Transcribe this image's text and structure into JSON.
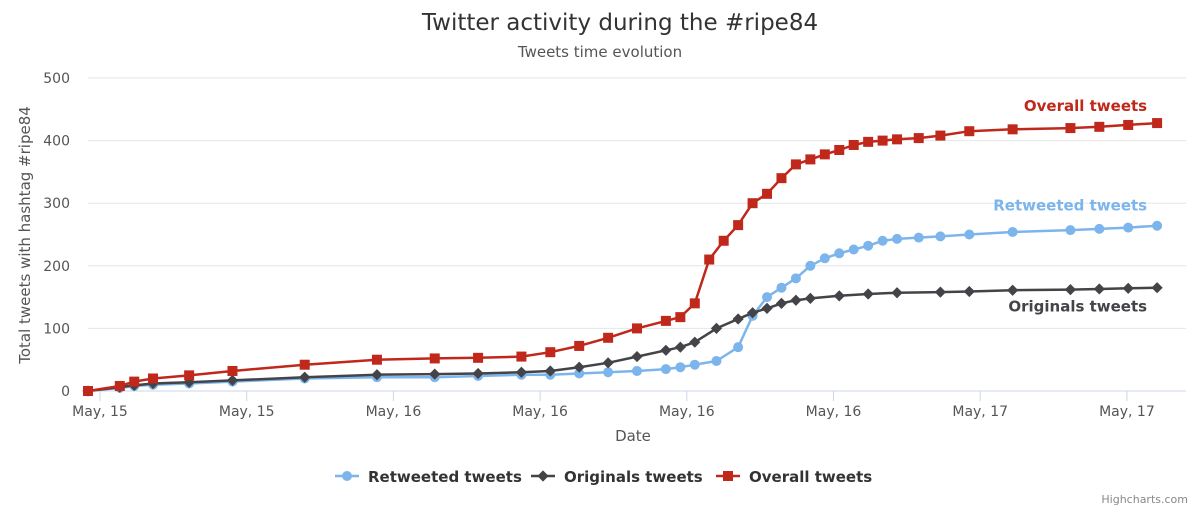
{
  "chart_data": {
    "type": "line",
    "title": "Twitter activity during the #ripe84",
    "subtitle": "Tweets time evolution",
    "xlabel": "Date",
    "ylabel": "Total tweets with hashtag #ripe84",
    "x_tick_labels": [
      "May, 15",
      "May, 15",
      "May, 16",
      "May, 16",
      "May, 16",
      "May, 16",
      "May, 17",
      "May, 17"
    ],
    "ylim": [
      0,
      500
    ],
    "y_ticks": [
      0,
      100,
      200,
      300,
      400,
      500
    ],
    "grid": true,
    "legend_position": "bottom-center",
    "credits": "Highcharts.com",
    "series": [
      {
        "name": "Retweeted tweets",
        "color": "#7cb5ec",
        "marker": "circle",
        "end_label": "Retweeted tweets",
        "x": [
          0.0,
          0.22,
          0.32,
          0.45,
          0.7,
          1.0,
          1.5,
          2.0,
          2.4,
          2.7,
          3.0,
          3.2,
          3.4,
          3.6,
          3.8,
          4.0,
          4.1,
          4.2,
          4.35,
          4.5,
          4.6,
          4.7,
          4.8,
          4.9,
          5.0,
          5.1,
          5.2,
          5.3,
          5.4,
          5.5,
          5.6,
          5.75,
          5.9,
          6.1,
          6.4,
          6.8,
          7.0,
          7.2,
          7.4
        ],
        "y": [
          0,
          5,
          8,
          10,
          12,
          15,
          20,
          22,
          22,
          24,
          26,
          26,
          28,
          30,
          32,
          35,
          38,
          42,
          48,
          70,
          120,
          150,
          165,
          180,
          200,
          212,
          220,
          226,
          232,
          240,
          243,
          245,
          247,
          250,
          254,
          257,
          259,
          261,
          264
        ]
      },
      {
        "name": "Originals tweets",
        "color": "#434348",
        "marker": "diamond",
        "end_label": "Originals tweets",
        "x": [
          0.0,
          0.22,
          0.32,
          0.45,
          0.7,
          1.0,
          1.5,
          2.0,
          2.4,
          2.7,
          3.0,
          3.2,
          3.4,
          3.6,
          3.8,
          4.0,
          4.1,
          4.2,
          4.35,
          4.5,
          4.6,
          4.7,
          4.8,
          4.9,
          5.0,
          5.2,
          5.4,
          5.6,
          5.9,
          6.1,
          6.4,
          6.8,
          7.0,
          7.2,
          7.4
        ],
        "y": [
          0,
          6,
          9,
          12,
          14,
          17,
          22,
          26,
          27,
          28,
          30,
          32,
          38,
          45,
          55,
          65,
          70,
          78,
          100,
          115,
          125,
          132,
          140,
          145,
          148,
          152,
          155,
          157,
          158,
          159,
          161,
          162,
          163,
          164,
          165
        ]
      },
      {
        "name": "Overall tweets",
        "color": "#c0281b",
        "marker": "square",
        "end_label": "Overall tweets",
        "x": [
          0.0,
          0.22,
          0.32,
          0.45,
          0.7,
          1.0,
          1.5,
          2.0,
          2.4,
          2.7,
          3.0,
          3.2,
          3.4,
          3.6,
          3.8,
          4.0,
          4.1,
          4.2,
          4.3,
          4.4,
          4.5,
          4.6,
          4.7,
          4.8,
          4.9,
          5.0,
          5.1,
          5.2,
          5.3,
          5.4,
          5.5,
          5.6,
          5.75,
          5.9,
          6.1,
          6.4,
          6.8,
          7.0,
          7.2,
          7.4
        ],
        "y": [
          0,
          8,
          15,
          20,
          25,
          32,
          42,
          50,
          52,
          53,
          55,
          62,
          72,
          85,
          100,
          112,
          118,
          140,
          210,
          240,
          265,
          300,
          315,
          340,
          362,
          370,
          378,
          385,
          393,
          398,
          400,
          402,
          404,
          408,
          415,
          418,
          420,
          422,
          425,
          428
        ]
      }
    ]
  },
  "legend": {
    "items": [
      "Retweeted tweets",
      "Originals tweets",
      "Overall tweets"
    ]
  }
}
